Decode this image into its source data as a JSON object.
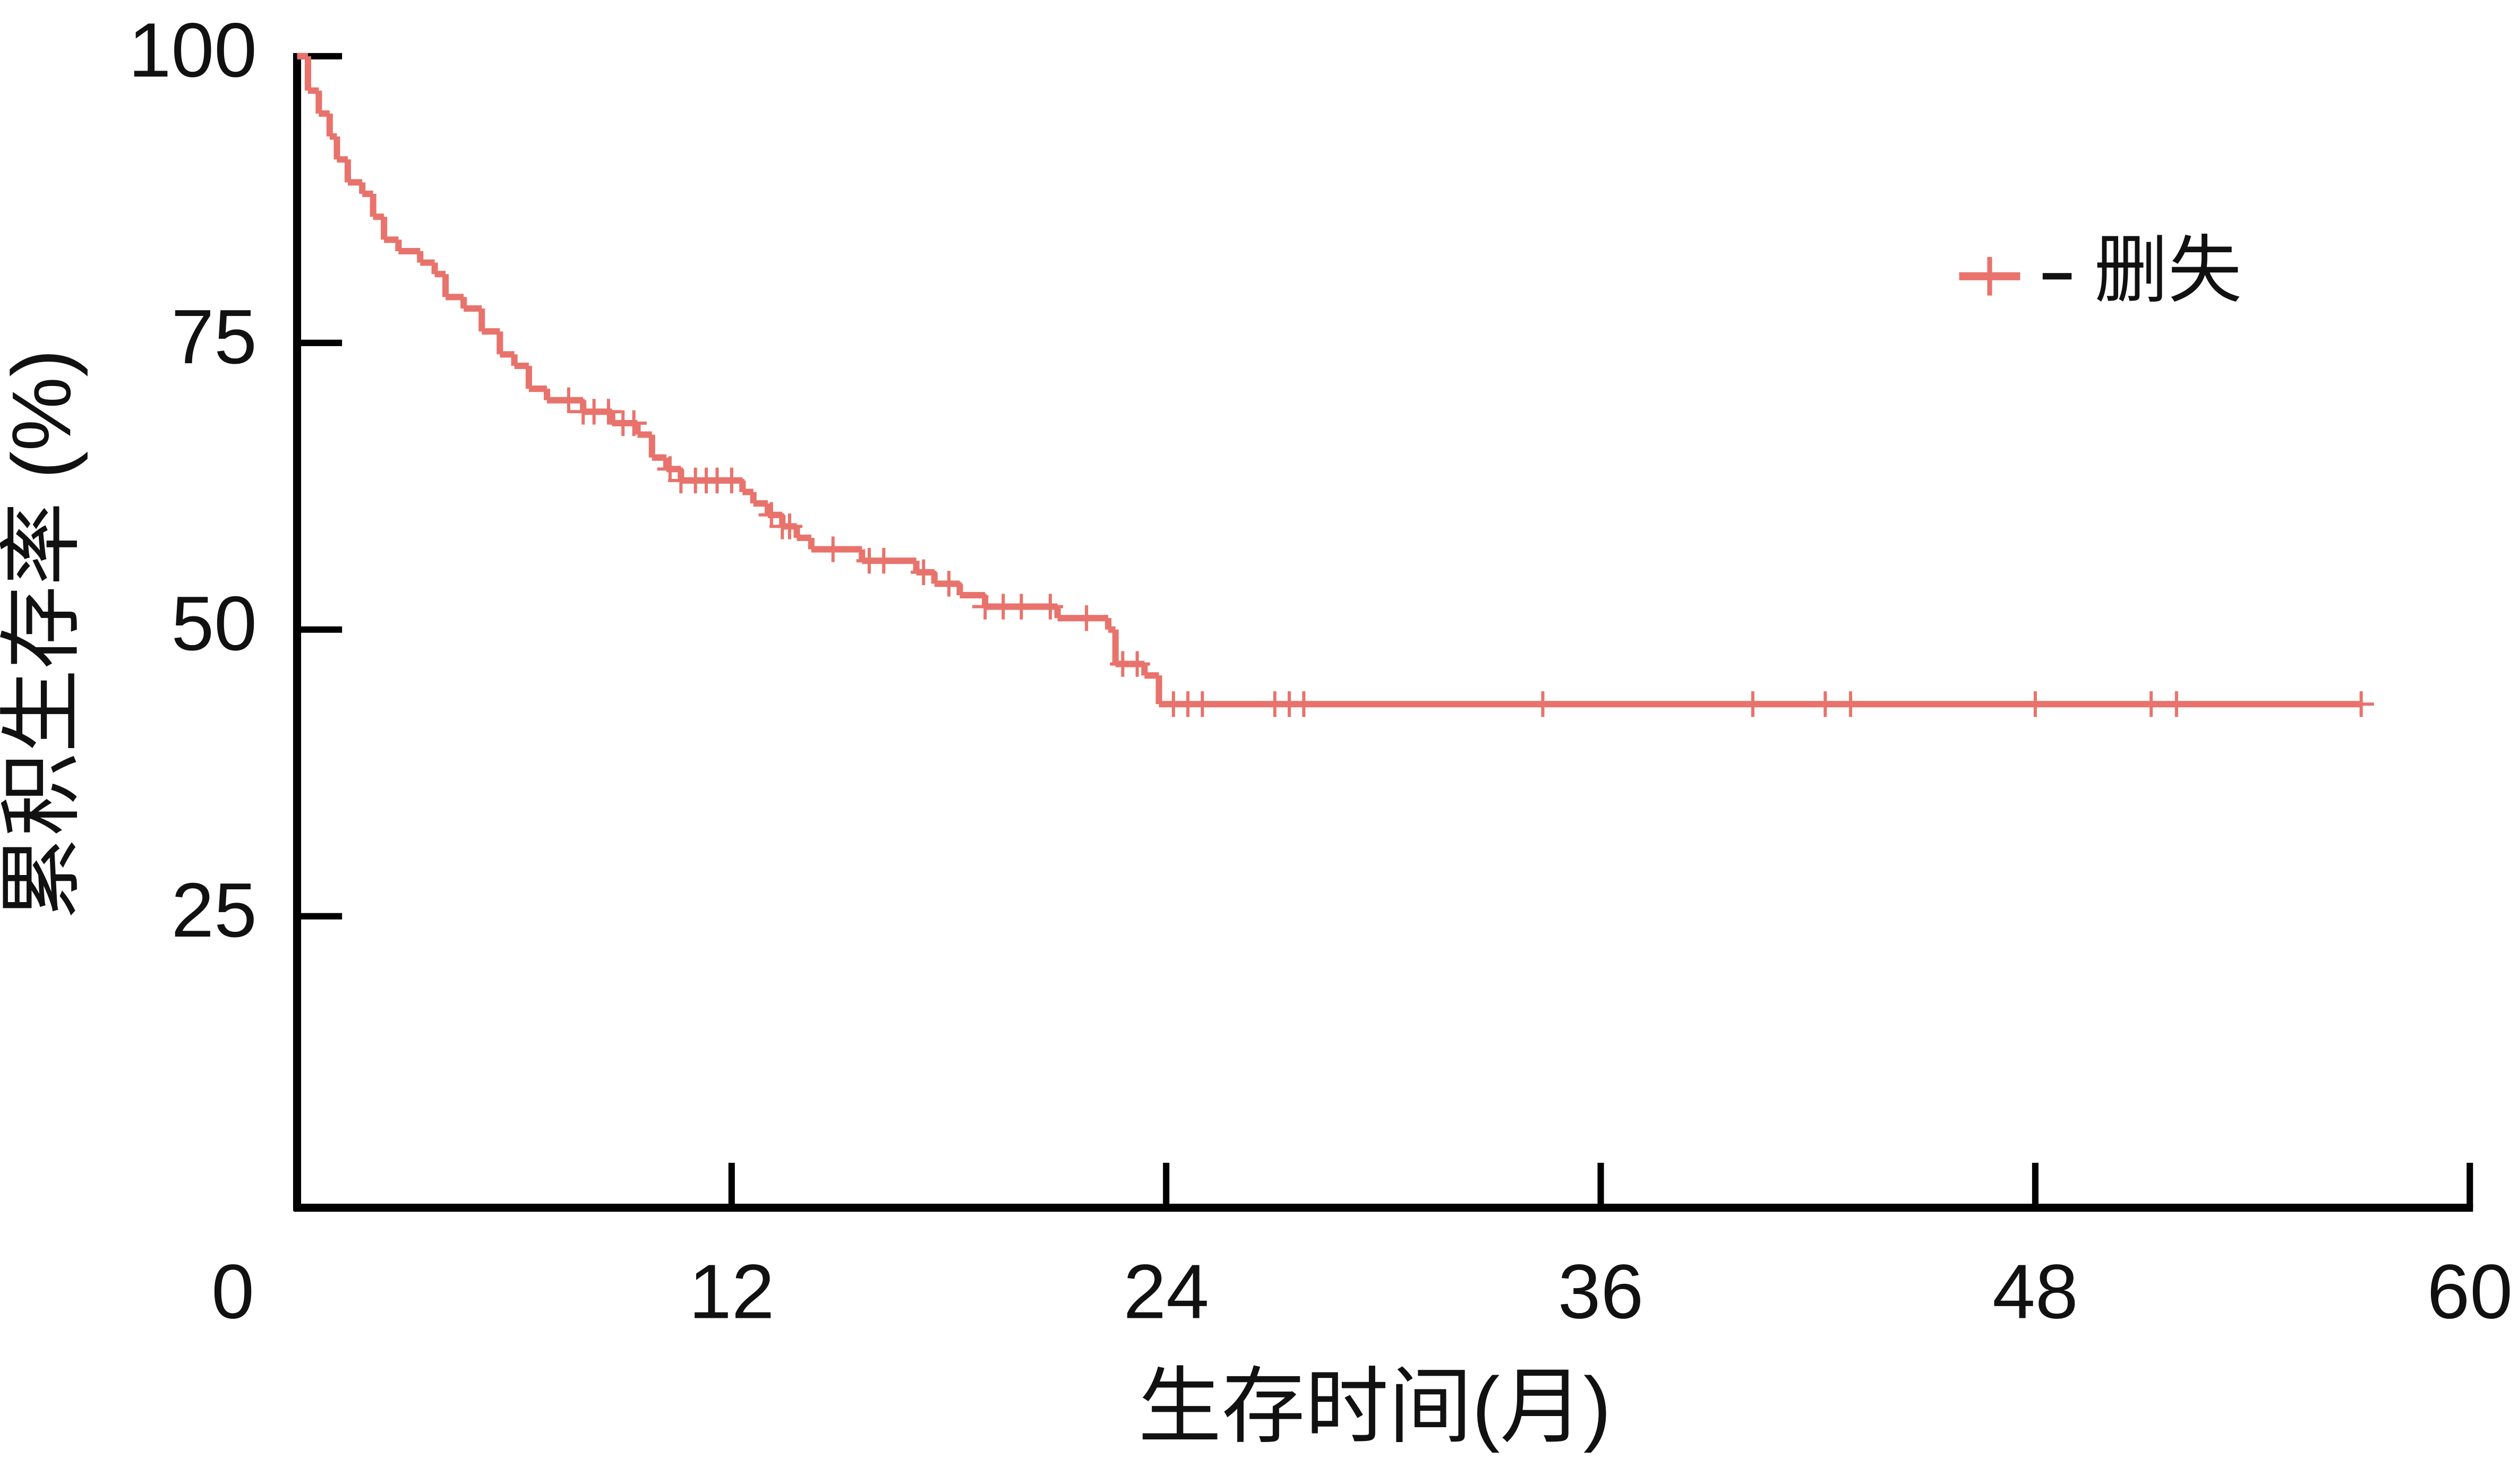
{
  "chart_data": {
    "type": "step",
    "xlabel": "生存时间(月)",
    "ylabel": "累积生存率 (%)",
    "xlim": [
      0,
      60
    ],
    "xticks": [
      0,
      12,
      24,
      36,
      48,
      60
    ],
    "ylim": [
      0,
      100
    ],
    "yticks": [
      25,
      50,
      75,
      100
    ],
    "series": [
      {
        "name": "删失",
        "color": "#e8736c",
        "x": [
          0,
          0.3,
          0.6,
          0.9,
          1.1,
          1.4,
          1.8,
          2.1,
          2.4,
          2.8,
          3.4,
          3.8,
          4.1,
          4.6,
          5.1,
          5.6,
          6.0,
          6.4,
          6.9,
          7.9,
          8.7,
          9.4,
          9.8,
          10.2,
          10.6,
          12.3,
          12.6,
          13.0,
          13.4,
          13.8,
          14.2,
          15.6,
          17.1,
          17.6,
          18.3,
          19.0,
          21.0,
          22.4,
          22.6,
          23.4,
          23.8
        ],
        "values": [
          100,
          97,
          95,
          93,
          91,
          89,
          88,
          86,
          84,
          83,
          82,
          81,
          79,
          78,
          76,
          74,
          73,
          71,
          70,
          69,
          68,
          67,
          65,
          64,
          63,
          62,
          61,
          60,
          59,
          58,
          57,
          56,
          55,
          54,
          53,
          52,
          51,
          50,
          47,
          46,
          43.5
        ],
        "end_x": 57,
        "censor_x": [
          7.5,
          7.9,
          8.2,
          8.6,
          9.0,
          9.3,
          10.3,
          10.6,
          11.0,
          11.3,
          11.6,
          12.0,
          13.1,
          13.4,
          13.6,
          14.8,
          15.8,
          16.2,
          17.3,
          18.0,
          19.0,
          19.5,
          20.0,
          20.8,
          21.8,
          22.8,
          23.2,
          24.2,
          24.6,
          25.0,
          27.0,
          27.4,
          27.8,
          34.4,
          40.2,
          42.2,
          42.9,
          48.0,
          51.2,
          51.9,
          57.0
        ],
        "censor_values": [
          70,
          69,
          69,
          69,
          68,
          68,
          64,
          63,
          63,
          63,
          63,
          63,
          60,
          59,
          59,
          57,
          56,
          56,
          55,
          54,
          52,
          52,
          52,
          52,
          51,
          47,
          47,
          43.5,
          43.5,
          43.5,
          43.5,
          43.5,
          43.5,
          43.5,
          43.5,
          43.5,
          43.5,
          43.5,
          43.5,
          43.5,
          43.5
        ]
      }
    ]
  }
}
